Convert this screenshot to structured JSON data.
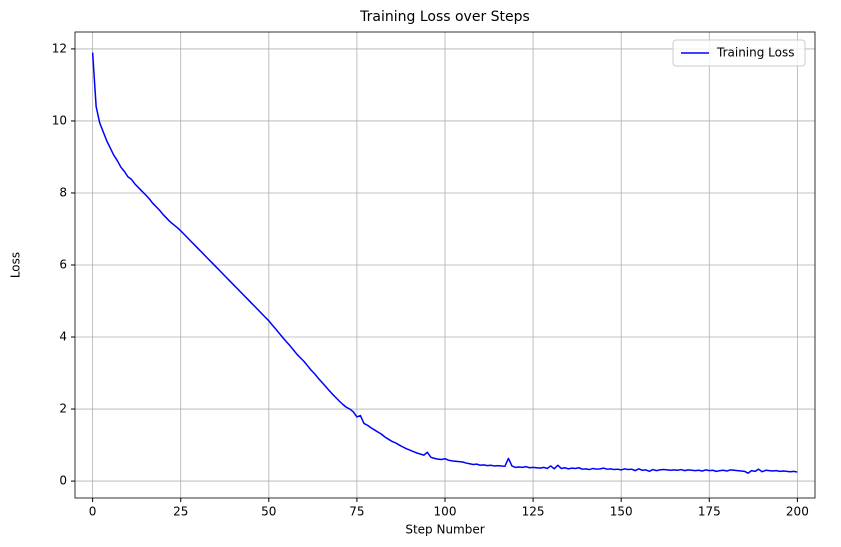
{
  "chart_data": {
    "type": "line",
    "title": "Training Loss over Steps",
    "x_label": "Step Number",
    "y_label": "Loss",
    "x": [
      0,
      1,
      2,
      3,
      4,
      5,
      6,
      7,
      8,
      9,
      10,
      11,
      12,
      13,
      14,
      15,
      16,
      17,
      18,
      19,
      20,
      21,
      22,
      23,
      24,
      25,
      26,
      27,
      28,
      29,
      30,
      31,
      32,
      33,
      34,
      35,
      36,
      37,
      38,
      39,
      40,
      41,
      42,
      43,
      44,
      45,
      46,
      47,
      48,
      49,
      50,
      51,
      52,
      53,
      54,
      55,
      56,
      57,
      58,
      59,
      60,
      61,
      62,
      63,
      64,
      65,
      66,
      67,
      68,
      69,
      70,
      71,
      72,
      73,
      74,
      75,
      76,
      77,
      78,
      79,
      80,
      81,
      82,
      83,
      84,
      85,
      86,
      87,
      88,
      89,
      90,
      91,
      92,
      93,
      94,
      95,
      96,
      97,
      98,
      99,
      100,
      101,
      102,
      103,
      104,
      105,
      106,
      107,
      108,
      109,
      110,
      111,
      112,
      113,
      114,
      115,
      116,
      117,
      118,
      119,
      120,
      121,
      122,
      123,
      124,
      125,
      126,
      127,
      128,
      129,
      130,
      131,
      132,
      133,
      134,
      135,
      136,
      137,
      138,
      139,
      140,
      141,
      142,
      143,
      144,
      145,
      146,
      147,
      148,
      149,
      150,
      151,
      152,
      153,
      154,
      155,
      156,
      157,
      158,
      159,
      160,
      161,
      162,
      163,
      164,
      165,
      166,
      167,
      168,
      169,
      170,
      171,
      172,
      173,
      174,
      175,
      176,
      177,
      178,
      179,
      180,
      181,
      182,
      183,
      184,
      185,
      186,
      187,
      188,
      189,
      190,
      191,
      192,
      193,
      194,
      195,
      196,
      197,
      198,
      199,
      200
    ],
    "series": [
      {
        "name": "Training Loss",
        "color": "#0000ff",
        "values": [
          11.9,
          10.4,
          9.95,
          9.7,
          9.45,
          9.25,
          9.05,
          8.9,
          8.72,
          8.6,
          8.45,
          8.38,
          8.25,
          8.15,
          8.05,
          7.95,
          7.85,
          7.72,
          7.62,
          7.52,
          7.4,
          7.3,
          7.2,
          7.12,
          7.04,
          6.95,
          6.85,
          6.75,
          6.65,
          6.55,
          6.45,
          6.35,
          6.25,
          6.15,
          6.05,
          5.95,
          5.85,
          5.75,
          5.65,
          5.55,
          5.45,
          5.35,
          5.25,
          5.15,
          5.05,
          4.95,
          4.85,
          4.75,
          4.65,
          4.55,
          4.45,
          4.33,
          4.22,
          4.1,
          3.98,
          3.87,
          3.76,
          3.64,
          3.52,
          3.42,
          3.32,
          3.2,
          3.08,
          2.98,
          2.86,
          2.75,
          2.64,
          2.53,
          2.42,
          2.32,
          2.22,
          2.13,
          2.05,
          2.0,
          1.92,
          1.78,
          1.82,
          1.6,
          1.55,
          1.48,
          1.42,
          1.36,
          1.3,
          1.22,
          1.16,
          1.1,
          1.06,
          1.0,
          0.95,
          0.9,
          0.86,
          0.82,
          0.78,
          0.75,
          0.72,
          0.8,
          0.66,
          0.63,
          0.61,
          0.6,
          0.62,
          0.58,
          0.56,
          0.55,
          0.54,
          0.53,
          0.5,
          0.48,
          0.46,
          0.47,
          0.44,
          0.45,
          0.43,
          0.44,
          0.42,
          0.43,
          0.42,
          0.41,
          0.63,
          0.42,
          0.38,
          0.39,
          0.38,
          0.4,
          0.37,
          0.38,
          0.37,
          0.36,
          0.38,
          0.35,
          0.42,
          0.34,
          0.44,
          0.35,
          0.37,
          0.34,
          0.36,
          0.35,
          0.37,
          0.33,
          0.34,
          0.32,
          0.35,
          0.33,
          0.34,
          0.36,
          0.33,
          0.34,
          0.32,
          0.33,
          0.31,
          0.34,
          0.32,
          0.33,
          0.29,
          0.34,
          0.3,
          0.31,
          0.27,
          0.32,
          0.29,
          0.31,
          0.32,
          0.31,
          0.3,
          0.31,
          0.3,
          0.32,
          0.29,
          0.31,
          0.3,
          0.29,
          0.3,
          0.28,
          0.31,
          0.29,
          0.3,
          0.27,
          0.29,
          0.3,
          0.28,
          0.31,
          0.3,
          0.29,
          0.28,
          0.27,
          0.22,
          0.29,
          0.27,
          0.33,
          0.26,
          0.3,
          0.29,
          0.28,
          0.29,
          0.27,
          0.28,
          0.27,
          0.26,
          0.27,
          0.25
        ]
      }
    ],
    "xlim": [
      -5,
      205
    ],
    "ylim": [
      -0.47,
      12.47
    ],
    "xticks": [
      0,
      25,
      50,
      75,
      100,
      125,
      150,
      175,
      200
    ],
    "yticks": [
      0,
      2,
      4,
      6,
      8,
      10,
      12
    ],
    "grid": true,
    "legend": "upper right"
  }
}
